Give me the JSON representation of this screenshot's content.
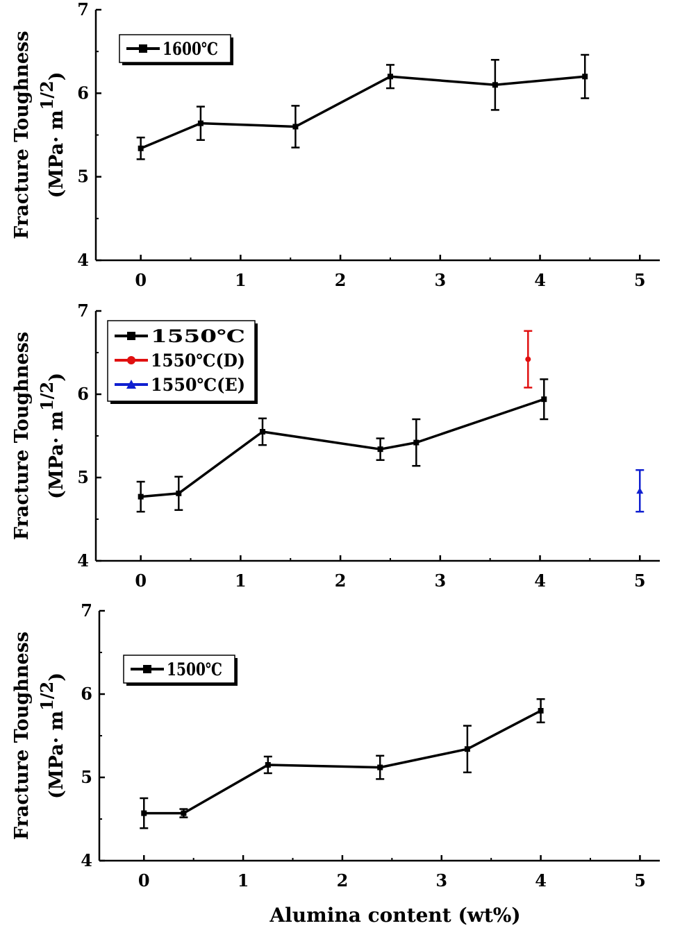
{
  "figure": {
    "xlabel": "Alumina content (wt%)"
  },
  "chart_data": [
    {
      "type": "line",
      "title": "",
      "ylabel_line1": "Fracture Toughness",
      "ylabel_line2_prefix": "(MPa· m",
      "ylabel_sup": "1/2",
      "ylabel_line2_suffix": ")",
      "xlim": [
        -0.45,
        5.2
      ],
      "ylim": [
        4,
        7
      ],
      "xticks": [
        "0",
        "1",
        "2",
        "3",
        "4",
        "5"
      ],
      "yticks": [
        "4",
        "5",
        "6",
        "7"
      ],
      "legend_position": "top-left",
      "series": [
        {
          "name": "1600℃",
          "color": "#000000",
          "marker": "square",
          "x": [
            0,
            0.6,
            1.55,
            2.5,
            3.55,
            4.45
          ],
          "y": [
            5.34,
            5.64,
            5.6,
            6.2,
            6.1,
            6.2
          ],
          "err": [
            0.13,
            0.2,
            0.25,
            0.14,
            0.3,
            0.26
          ]
        }
      ]
    },
    {
      "type": "line",
      "title": "",
      "ylabel_line1": "Fracture Toughness",
      "ylabel_line2_prefix": "(MPa· m",
      "ylabel_sup": "1/2",
      "ylabel_line2_suffix": ")",
      "xlim": [
        -0.45,
        5.2
      ],
      "ylim": [
        4,
        7
      ],
      "xticks": [
        "0",
        "1",
        "2",
        "3",
        "4",
        "5"
      ],
      "yticks": [
        "4",
        "5",
        "6",
        "7"
      ],
      "legend_position": "top-left",
      "series": [
        {
          "name": "1550℃",
          "color": "#000000",
          "marker": "square",
          "x": [
            0,
            0.38,
            1.22,
            2.4,
            2.76,
            4.04
          ],
          "y": [
            4.77,
            4.81,
            5.55,
            5.34,
            5.42,
            5.94
          ],
          "err": [
            0.18,
            0.2,
            0.16,
            0.13,
            0.28,
            0.24
          ]
        },
        {
          "name": "1550℃(D)",
          "color": "#e01010",
          "marker": "circle",
          "x": [
            3.88
          ],
          "y": [
            6.42
          ],
          "err": [
            0.34
          ]
        },
        {
          "name": "1550℃(E)",
          "color": "#1020d0",
          "marker": "triangle",
          "x": [
            5.0
          ],
          "y": [
            4.84
          ],
          "err": [
            0.25
          ]
        }
      ]
    },
    {
      "type": "line",
      "title": "",
      "ylabel_line1": "Fracture Toughness",
      "ylabel_line2_prefix": "(MPa· m",
      "ylabel_sup": "1/2",
      "ylabel_line2_suffix": ")",
      "xlim": [
        -0.45,
        5.2
      ],
      "ylim": [
        4,
        7
      ],
      "xticks": [
        "0",
        "1",
        "2",
        "3",
        "4",
        "5"
      ],
      "yticks": [
        "4",
        "5",
        "6",
        "7"
      ],
      "legend_position": "top-left",
      "series": [
        {
          "name": "1500℃",
          "color": "#000000",
          "marker": "square",
          "x": [
            0,
            0.4,
            1.25,
            2.38,
            3.26,
            4.0
          ],
          "y": [
            4.57,
            4.57,
            5.15,
            5.12,
            5.34,
            5.8
          ],
          "err": [
            0.18,
            0.05,
            0.1,
            0.14,
            0.28,
            0.14
          ]
        }
      ]
    }
  ]
}
